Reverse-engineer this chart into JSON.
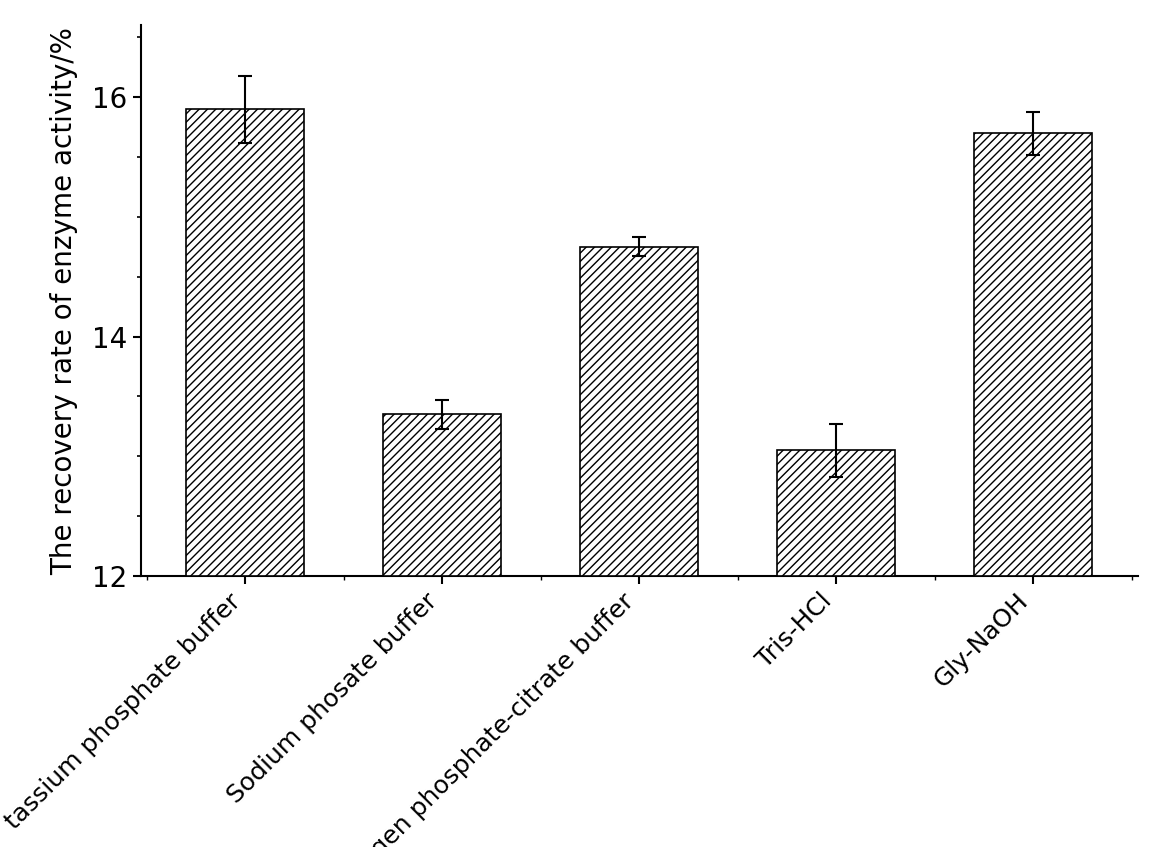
{
  "categories": [
    "tassium phosphate buffer",
    "Sodium phosate buffer",
    "Disodium hydrogen phosphate-citrate buffer",
    "Tris-HCl",
    "Gly-NaOH"
  ],
  "values": [
    15.9,
    13.35,
    14.75,
    13.05,
    15.7
  ],
  "errors": [
    0.28,
    0.12,
    0.08,
    0.22,
    0.18
  ],
  "ylabel": "The recovery rate of enzyme activity/%",
  "ylim": [
    12,
    16.6
  ],
  "yticks": [
    12,
    14,
    16
  ],
  "bar_color": "#ffffff",
  "bar_edgecolor": "#000000",
  "hatch": "////",
  "background_color": "#ffffff",
  "bar_width": 0.6,
  "xlabel_rotation": 45,
  "tick_label_fontsize": 20,
  "ylabel_fontsize": 20,
  "minor_ytick_interval": 0.5
}
